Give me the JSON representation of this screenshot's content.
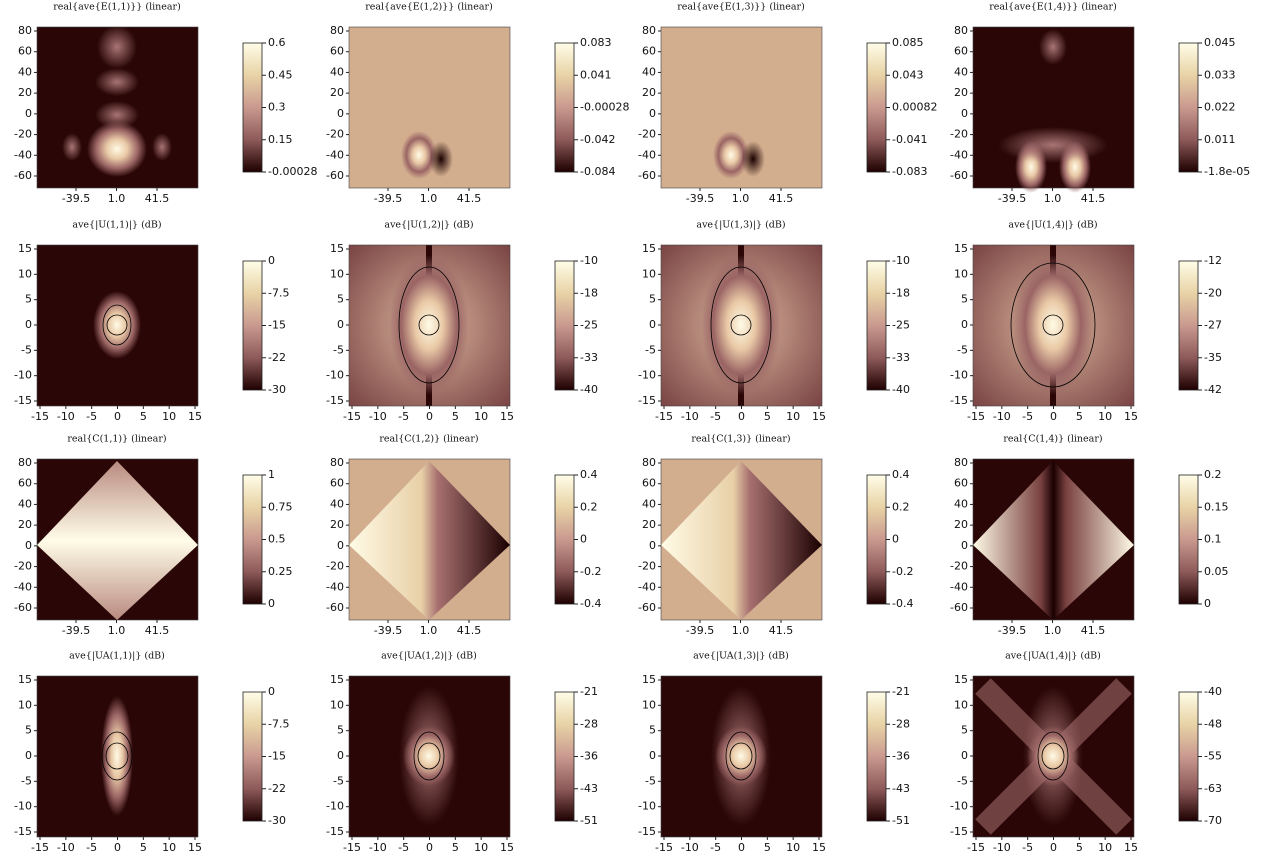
{
  "panels": [
    {
      "title": "real{ave{E(1,1)}} (linear)",
      "y_ticks": [
        "80",
        "60",
        "40",
        "20",
        "0",
        "-20",
        "-40",
        "-60"
      ],
      "x_ticks": [
        "-39.5",
        "1.0",
        "41.5"
      ],
      "colorbar_ticks": [
        "0.6",
        "0.45",
        "0.3",
        "0.15",
        "-0.00028"
      ]
    },
    {
      "title": "real{ave{E(1,2)}} (linear)",
      "y_ticks": [
        "80",
        "60",
        "40",
        "20",
        "0",
        "-20",
        "-40",
        "-60"
      ],
      "x_ticks": [
        "-39.5",
        "1.0",
        "41.5"
      ],
      "colorbar_ticks": [
        "0.083",
        "0.041",
        "-0.00028",
        "-0.042",
        "-0.084"
      ]
    },
    {
      "title": "real{ave{E(1,3)}} (linear)",
      "y_ticks": [
        "80",
        "60",
        "40",
        "20",
        "0",
        "-20",
        "-40",
        "-60"
      ],
      "x_ticks": [
        "-39.5",
        "1.0",
        "41.5"
      ],
      "colorbar_ticks": [
        "0.085",
        "0.043",
        "0.00082",
        "-0.041",
        "-0.083"
      ]
    },
    {
      "title": "real{ave{E(1,4)}} (linear)",
      "y_ticks": [
        "80",
        "60",
        "40",
        "20",
        "0",
        "-20",
        "-40",
        "-60"
      ],
      "x_ticks": [
        "-39.5",
        "1.0",
        "41.5"
      ],
      "colorbar_ticks": [
        "0.045",
        "0.033",
        "0.022",
        "0.011",
        "-1.8e-05"
      ]
    },
    {
      "title": "ave{|U(1,1)|} (dB)",
      "y_ticks": [
        "15",
        "10",
        "5",
        "0",
        "-5",
        "-10",
        "-15"
      ],
      "x_ticks": [
        "-15",
        "-10",
        "-5",
        "0",
        "5",
        "10",
        "15"
      ],
      "colorbar_ticks": [
        "0",
        "-7.5",
        "-15",
        "-22",
        "-30"
      ]
    },
    {
      "title": "ave{|U(1,2)|} (dB)",
      "y_ticks": [
        "15",
        "10",
        "5",
        "0",
        "-5",
        "-10",
        "-15"
      ],
      "x_ticks": [
        "-15",
        "-10",
        "-5",
        "0",
        "5",
        "10",
        "15"
      ],
      "colorbar_ticks": [
        "-10",
        "-18",
        "-25",
        "-33",
        "-40"
      ]
    },
    {
      "title": "ave{|U(1,3)|} (dB)",
      "y_ticks": [
        "15",
        "10",
        "5",
        "0",
        "-5",
        "-10",
        "-15"
      ],
      "x_ticks": [
        "-15",
        "-10",
        "-5",
        "0",
        "5",
        "10",
        "15"
      ],
      "colorbar_ticks": [
        "-10",
        "-18",
        "-25",
        "-33",
        "-40"
      ]
    },
    {
      "title": "ave{|U(1,4)|} (dB)",
      "y_ticks": [
        "15",
        "10",
        "5",
        "0",
        "-5",
        "-10",
        "-15"
      ],
      "x_ticks": [
        "-15",
        "-10",
        "-5",
        "0",
        "5",
        "10",
        "15"
      ],
      "colorbar_ticks": [
        "-12",
        "-20",
        "-27",
        "-35",
        "-42"
      ]
    },
    {
      "title": "real{C(1,1)} (linear)",
      "y_ticks": [
        "80",
        "60",
        "40",
        "20",
        "0",
        "-20",
        "-40",
        "-60"
      ],
      "x_ticks": [
        "-39.5",
        "1.0",
        "41.5"
      ],
      "colorbar_ticks": [
        "1",
        "0.75",
        "0.5",
        "0.25",
        "0"
      ]
    },
    {
      "title": "real{C(1,2)} (linear)",
      "y_ticks": [
        "80",
        "60",
        "40",
        "20",
        "0",
        "-20",
        "-40",
        "-60"
      ],
      "x_ticks": [
        "-39.5",
        "1.0",
        "41.5"
      ],
      "colorbar_ticks": [
        "0.4",
        "0.2",
        "0",
        "-0.2",
        "-0.4"
      ]
    },
    {
      "title": "real{C(1,3)} (linear)",
      "y_ticks": [
        "80",
        "60",
        "40",
        "20",
        "0",
        "-20",
        "-40",
        "-60"
      ],
      "x_ticks": [
        "-39.5",
        "1.0",
        "41.5"
      ],
      "colorbar_ticks": [
        "0.4",
        "0.2",
        "0",
        "-0.2",
        "-0.4"
      ]
    },
    {
      "title": "real{C(1,4)} (linear)",
      "y_ticks": [
        "80",
        "60",
        "40",
        "20",
        "0",
        "-20",
        "-40",
        "-60"
      ],
      "x_ticks": [
        "-39.5",
        "1.0",
        "41.5"
      ],
      "colorbar_ticks": [
        "0.2",
        "0.15",
        "0.1",
        "0.05",
        "0"
      ]
    },
    {
      "title": "ave{|UA(1,1)|} (dB)",
      "y_ticks": [
        "15",
        "10",
        "5",
        "0",
        "-5",
        "-10",
        "-15"
      ],
      "x_ticks": [
        "-15",
        "-10",
        "-5",
        "0",
        "5",
        "10",
        "15"
      ],
      "colorbar_ticks": [
        "0",
        "-7.5",
        "-15",
        "-22",
        "-30"
      ]
    },
    {
      "title": "ave{|UA(1,2)|} (dB)",
      "y_ticks": [
        "15",
        "10",
        "5",
        "0",
        "-5",
        "-10",
        "-15"
      ],
      "x_ticks": [
        "-15",
        "-10",
        "-5",
        "0",
        "5",
        "10",
        "15"
      ],
      "colorbar_ticks": [
        "-21",
        "-28",
        "-36",
        "-43",
        "-51"
      ]
    },
    {
      "title": "ave{|UA(1,3)|} (dB)",
      "y_ticks": [
        "15",
        "10",
        "5",
        "0",
        "-5",
        "-10",
        "-15"
      ],
      "x_ticks": [
        "-15",
        "-10",
        "-5",
        "0",
        "5",
        "10",
        "15"
      ],
      "colorbar_ticks": [
        "-21",
        "-28",
        "-36",
        "-43",
        "-51"
      ]
    },
    {
      "title": "ave{|UA(1,4)|} (dB)",
      "y_ticks": [
        "15",
        "10",
        "5",
        "0",
        "-5",
        "-10",
        "-15"
      ],
      "x_ticks": [
        "-15",
        "-10",
        "-5",
        "0",
        "5",
        "10",
        "15"
      ],
      "colorbar_ticks": [
        "-40",
        "-48",
        "-55",
        "-63",
        "-70"
      ]
    }
  ]
}
